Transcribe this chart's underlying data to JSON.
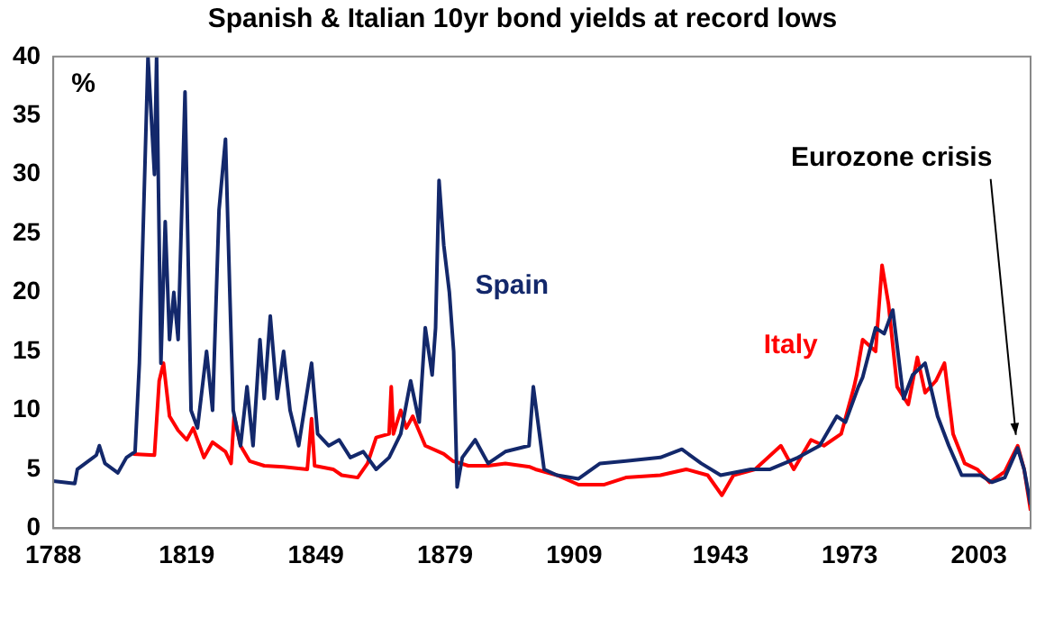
{
  "chart_data": {
    "type": "line",
    "title": "Spanish & Italian 10yr bond yields at record lows",
    "ylabel": "%",
    "xlim": [
      1788,
      2015
    ],
    "xticks": [
      1788,
      1819,
      1849,
      1879,
      1909,
      1943,
      1973,
      2003
    ],
    "ylim": [
      0,
      40
    ],
    "yticks": [
      0,
      5,
      10,
      15,
      20,
      25,
      30,
      35,
      40
    ],
    "grid": false,
    "legend": false,
    "marker": "none",
    "line_style": "solid",
    "annotations": [
      {
        "text": "Eurozone crisis",
        "x": 2012,
        "y": 7
      }
    ],
    "series": [
      {
        "name": "Spain",
        "color": "#13286b",
        "x": [
          1788,
          1793,
          1793.6,
          1798,
          1798.7,
          1800,
          1803,
          1805,
          1807,
          1808,
          1810,
          1811.5,
          1812,
          1813,
          1814,
          1815,
          1816,
          1817,
          1818.6,
          1820,
          1821.5,
          1823.6,
          1825,
          1826.5,
          1828,
          1829,
          1829.8,
          1831.5,
          1833,
          1834.4,
          1836,
          1837,
          1838.4,
          1840,
          1841.5,
          1843,
          1845,
          1848,
          1849.4,
          1852,
          1854.4,
          1857,
          1860,
          1863,
          1866,
          1868.7,
          1871,
          1873,
          1874.4,
          1876,
          1876.8,
          1877.6,
          1878.7,
          1880,
          1881,
          1881.8,
          1883,
          1886,
          1889,
          1893,
          1898.5,
          1899.5,
          1902,
          1905,
          1910,
          1915,
          1921,
          1929,
          1934,
          1938.5,
          1943,
          1950,
          1954.5,
          1961,
          1966,
          1970,
          1972,
          1975,
          1976,
          1979,
          1981,
          1983,
          1985.5,
          1987.6,
          1990.5,
          1993.4,
          1996,
          1999,
          2003.4,
          2006,
          2009,
          2012,
          2013.5,
          2015
        ],
        "values": [
          4,
          3.8,
          5,
          6.2,
          7,
          5.5,
          4.7,
          6,
          6.5,
          14,
          40,
          30,
          40,
          14,
          26,
          16,
          20,
          16,
          37,
          10,
          8.5,
          15,
          10,
          27,
          33,
          20,
          10,
          7,
          12,
          7,
          16,
          11,
          18,
          11,
          15,
          10,
          7,
          14,
          8,
          7,
          7.5,
          6,
          6.5,
          5,
          6,
          8,
          12.5,
          9,
          17,
          13,
          17,
          29.5,
          24,
          20,
          15,
          3.5,
          6,
          7.5,
          5.5,
          6.5,
          7,
          12,
          5,
          4.5,
          4.2,
          5.5,
          5.7,
          6,
          6.7,
          5.5,
          4.5,
          5,
          5,
          6,
          7,
          9.5,
          9,
          12,
          12.8,
          17,
          16.5,
          18.5,
          11,
          13,
          14,
          9.5,
          7,
          4.5,
          4.5,
          3.9,
          4.3,
          6.8,
          5,
          2
        ]
      },
      {
        "name": "Italy",
        "color": "#ff0000",
        "x": [
          1806.5,
          1811.5,
          1812.6,
          1813.6,
          1815,
          1817,
          1819,
          1820.5,
          1823,
          1825,
          1828,
          1829.3,
          1830,
          1831.5,
          1833.6,
          1837,
          1841.5,
          1847,
          1848,
          1848.7,
          1853,
          1855,
          1858.7,
          1861,
          1863,
          1866,
          1866.5,
          1867,
          1868.7,
          1870,
          1871.5,
          1874.4,
          1878.7,
          1880.8,
          1884.4,
          1889,
          1893,
          1898.7,
          1900,
          1905,
          1910,
          1916,
          1921,
          1929,
          1935,
          1940,
          1943.3,
          1946,
          1951,
          1957,
          1960,
          1964,
          1967,
          1971,
          1974,
          1974.6,
          1976,
          1979,
          1980.5,
          1982,
          1984,
          1986.6,
          1988.7,
          1990.5,
          1993,
          1995,
          1997,
          1999.7,
          2002.6,
          2005.5,
          2009,
          2012,
          2013.5,
          2015
        ],
        "values": [
          6.3,
          6.2,
          12.5,
          14,
          9.5,
          8.3,
          7.5,
          8.5,
          6,
          7.3,
          6.5,
          5.5,
          9.5,
          7,
          5.7,
          5.3,
          5.2,
          5,
          9.3,
          5.3,
          5,
          4.5,
          4.3,
          5.5,
          7.7,
          8,
          12,
          8,
          10,
          8.5,
          9.5,
          7,
          6.3,
          5.7,
          5.3,
          5.3,
          5.5,
          5.2,
          5,
          4.5,
          3.7,
          3.7,
          4.3,
          4.5,
          5,
          4.5,
          2.8,
          4.5,
          5,
          7,
          5,
          7.5,
          7,
          8,
          12,
          13,
          16,
          15,
          22.3,
          19,
          12,
          10.5,
          14.5,
          11.5,
          12.5,
          14,
          8,
          5.5,
          5,
          3.9,
          4.8,
          7,
          5,
          1.5
        ]
      }
    ]
  }
}
